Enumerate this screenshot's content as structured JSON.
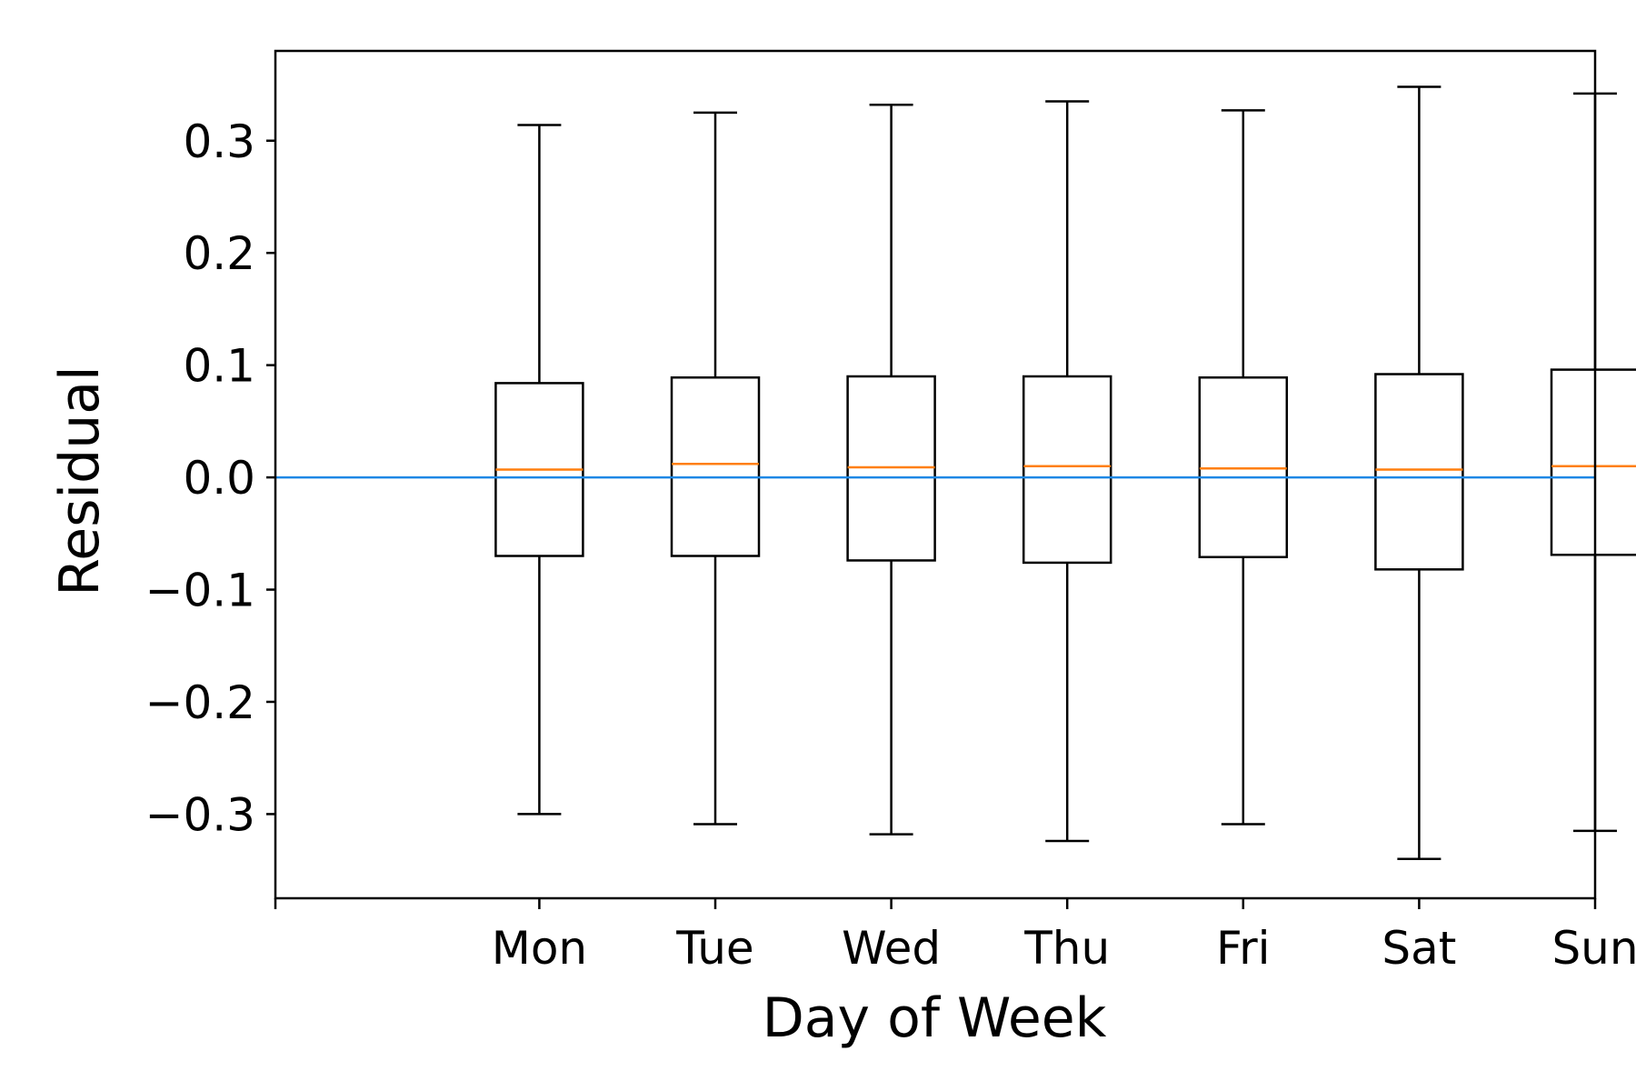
{
  "chart_data": {
    "type": "box",
    "categories": [
      "Mon",
      "Tue",
      "Wed",
      "Thu",
      "Fri",
      "Sat",
      "Sun"
    ],
    "boxes": [
      {
        "category": "Mon",
        "whisker_low": -0.3,
        "q1": -0.07,
        "median": 0.007,
        "q3": 0.084,
        "whisker_high": 0.314
      },
      {
        "category": "Tue",
        "whisker_low": -0.309,
        "q1": -0.07,
        "median": 0.012,
        "q3": 0.089,
        "whisker_high": 0.325
      },
      {
        "category": "Wed",
        "whisker_low": -0.318,
        "q1": -0.074,
        "median": 0.009,
        "q3": 0.09,
        "whisker_high": 0.332
      },
      {
        "category": "Thu",
        "whisker_low": -0.324,
        "q1": -0.076,
        "median": 0.01,
        "q3": 0.09,
        "whisker_high": 0.335
      },
      {
        "category": "Fri",
        "whisker_low": -0.309,
        "q1": -0.071,
        "median": 0.008,
        "q3": 0.089,
        "whisker_high": 0.327
      },
      {
        "category": "Sat",
        "whisker_low": -0.34,
        "q1": -0.082,
        "median": 0.007,
        "q3": 0.092,
        "whisker_high": 0.348
      },
      {
        "category": "Sun",
        "whisker_low": -0.315,
        "q1": -0.069,
        "median": 0.01,
        "q3": 0.096,
        "whisker_high": 0.342
      }
    ],
    "reference_line": {
      "y": 0.0,
      "color": "#1e88e5"
    },
    "title": "",
    "xlabel": "Day of Week",
    "ylabel": "Residual",
    "ylim": [
      -0.375,
      0.38
    ],
    "xlim": [
      -0.5,
      7
    ],
    "yticks": [
      -0.3,
      -0.2,
      -0.1,
      0.0,
      0.1,
      0.2,
      0.3
    ],
    "ytick_labels": [
      "−0.3",
      "−0.2",
      "−0.1",
      "0.0",
      "0.1",
      "0.2",
      "0.3"
    ],
    "grid": false,
    "colors": {
      "box": "#000000",
      "median": "#ff7f0e",
      "reference": "#1e88e5"
    }
  }
}
